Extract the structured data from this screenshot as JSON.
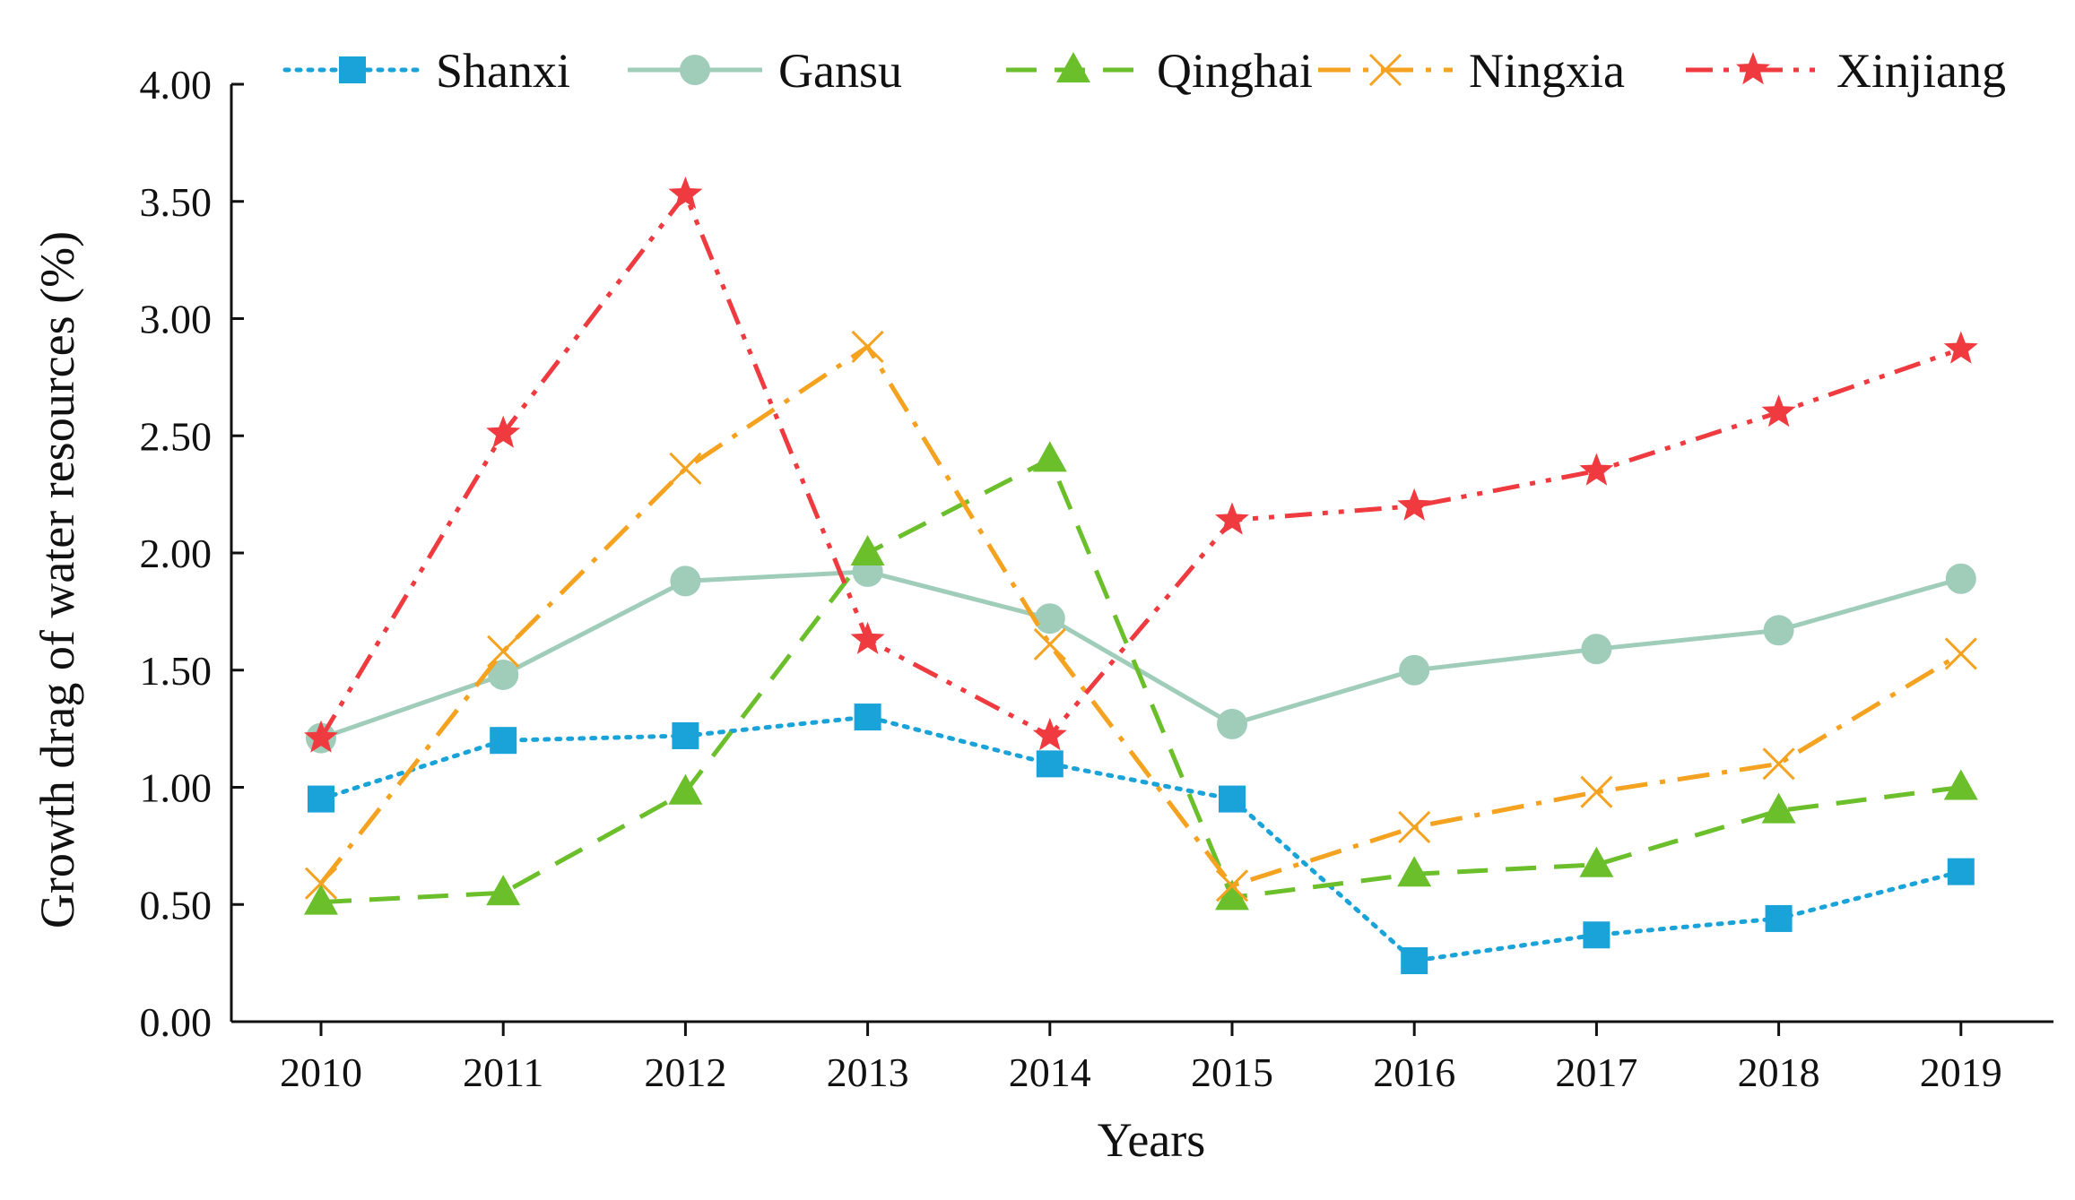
{
  "chart_data": {
    "type": "line",
    "title": "",
    "xlabel": "Years",
    "ylabel": "Growth drag of water resources (%)",
    "categories": [
      "2010",
      "2011",
      "2012",
      "2013",
      "2014",
      "2015",
      "2016",
      "2017",
      "2018",
      "2019"
    ],
    "ylim": [
      0,
      4
    ],
    "yticks": [
      "0.00",
      "0.50",
      "1.00",
      "1.50",
      "2.00",
      "2.50",
      "3.00",
      "3.50",
      "4.00"
    ],
    "legend_position": "top",
    "grid": false,
    "series": [
      {
        "name": "Shanxi",
        "color": "#1aa3d9",
        "marker": "square",
        "dash": "dotted",
        "values": [
          0.95,
          1.2,
          1.22,
          1.3,
          1.1,
          0.95,
          0.26,
          0.37,
          0.44,
          0.64
        ]
      },
      {
        "name": "Gansu",
        "color": "#9fcdb9",
        "marker": "circle",
        "dash": "solid",
        "values": [
          1.21,
          1.48,
          1.88,
          1.92,
          1.72,
          1.27,
          1.5,
          1.59,
          1.67,
          1.89
        ]
      },
      {
        "name": "Qinghai",
        "color": "#6bbf2a",
        "marker": "triangle",
        "dash": "dashed",
        "values": [
          0.51,
          0.55,
          0.98,
          2.0,
          2.4,
          0.53,
          0.63,
          0.67,
          0.9,
          1.0
        ]
      },
      {
        "name": "Ningxia",
        "color": "#f4a21f",
        "marker": "x",
        "dash": "dashdot",
        "values": [
          0.59,
          1.58,
          2.36,
          2.88,
          1.61,
          0.58,
          0.83,
          0.98,
          1.1,
          1.57
        ]
      },
      {
        "name": "Xinjiang",
        "color": "#ef3b3f",
        "marker": "star",
        "dash": "dashdotdot",
        "values": [
          1.21,
          2.51,
          3.53,
          1.63,
          1.22,
          2.14,
          2.2,
          2.35,
          2.6,
          2.87
        ]
      }
    ]
  }
}
